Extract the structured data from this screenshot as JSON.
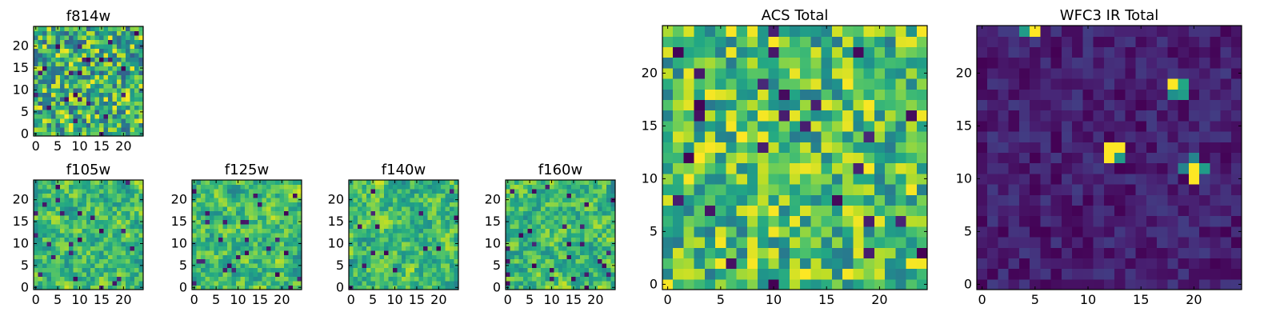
{
  "chart_data": [
    {
      "type": "heatmap",
      "title": "f814w",
      "grid_size": 25,
      "colormap": "viridis",
      "xticks": [
        0,
        5,
        10,
        15,
        20
      ],
      "yticks": [
        0,
        5,
        10,
        15,
        20
      ],
      "xlim": [
        0,
        24
      ],
      "ylim": [
        0,
        24
      ],
      "color_range": [
        0.3,
        1.0
      ],
      "spike_cells": [],
      "seed": 11,
      "smooth": false
    },
    {
      "type": "heatmap",
      "title": "f105w",
      "grid_size": 25,
      "colormap": "viridis",
      "xticks": [
        0,
        5,
        10,
        15,
        20
      ],
      "yticks": [
        0,
        5,
        10,
        15,
        20
      ],
      "xlim": [
        0,
        24
      ],
      "ylim": [
        0,
        24
      ],
      "color_range": [
        0.35,
        1.0
      ],
      "spike_cells": [],
      "seed": 23,
      "smooth": true
    },
    {
      "type": "heatmap",
      "title": "f125w",
      "grid_size": 25,
      "colormap": "viridis",
      "xticks": [
        0,
        5,
        10,
        15,
        20
      ],
      "yticks": [
        0,
        5,
        10,
        15,
        20
      ],
      "xlim": [
        0,
        24
      ],
      "ylim": [
        0,
        24
      ],
      "color_range": [
        0.35,
        1.0
      ],
      "spike_cells": [],
      "seed": 37,
      "smooth": true
    },
    {
      "type": "heatmap",
      "title": "f140w",
      "grid_size": 25,
      "colormap": "viridis",
      "xticks": [
        0,
        5,
        10,
        15,
        20
      ],
      "yticks": [
        0,
        5,
        10,
        15,
        20
      ],
      "xlim": [
        0,
        24
      ],
      "ylim": [
        0,
        24
      ],
      "color_range": [
        0.35,
        1.0
      ],
      "spike_cells": [],
      "seed": 41,
      "smooth": true
    },
    {
      "type": "heatmap",
      "title": "f160w",
      "grid_size": 25,
      "colormap": "viridis",
      "xticks": [
        0,
        5,
        10,
        15,
        20
      ],
      "yticks": [
        0,
        5,
        10,
        15,
        20
      ],
      "xlim": [
        0,
        24
      ],
      "ylim": [
        0,
        24
      ],
      "color_range": [
        0.35,
        1.0
      ],
      "spike_cells": [],
      "seed": 53,
      "smooth": true
    },
    {
      "type": "heatmap",
      "title": "ACS Total",
      "grid_size": 25,
      "colormap": "viridis",
      "xticks": [
        0,
        5,
        10,
        15,
        20
      ],
      "yticks": [
        0,
        5,
        10,
        15,
        20
      ],
      "xlim": [
        0,
        24
      ],
      "ylim": [
        0,
        24
      ],
      "color_range": [
        0.4,
        1.0
      ],
      "spike_cells": [],
      "seed": 67,
      "smooth": false
    },
    {
      "type": "heatmap",
      "title": "WFC3 IR Total",
      "grid_size": 25,
      "colormap": "viridis",
      "xticks": [
        0,
        5,
        10,
        15,
        20
      ],
      "yticks": [
        0,
        5,
        10,
        15,
        20
      ],
      "xlim": [
        0,
        24
      ],
      "ylim": [
        0,
        24
      ],
      "color_range": [
        0.0,
        0.18
      ],
      "spike_cells": [
        {
          "x": 5,
          "y": 24,
          "value": 1.0
        },
        {
          "x": 4,
          "y": 24,
          "value": 0.55
        },
        {
          "x": 18,
          "y": 19,
          "value": 1.0
        },
        {
          "x": 19,
          "y": 19,
          "value": 0.6
        },
        {
          "x": 18,
          "y": 18,
          "value": 0.5
        },
        {
          "x": 19,
          "y": 18,
          "value": 0.55
        },
        {
          "x": 12,
          "y": 13,
          "value": 1.0
        },
        {
          "x": 13,
          "y": 13,
          "value": 1.0
        },
        {
          "x": 12,
          "y": 12,
          "value": 1.0
        },
        {
          "x": 13,
          "y": 12,
          "value": 0.55
        },
        {
          "x": 20,
          "y": 11,
          "value": 1.0
        },
        {
          "x": 20,
          "y": 10,
          "value": 1.0
        },
        {
          "x": 21,
          "y": 11,
          "value": 0.55
        },
        {
          "x": 19,
          "y": 11,
          "value": 0.45
        },
        {
          "x": 20,
          "y": 12,
          "value": 0.45
        }
      ],
      "seed": 79,
      "smooth": false
    }
  ]
}
